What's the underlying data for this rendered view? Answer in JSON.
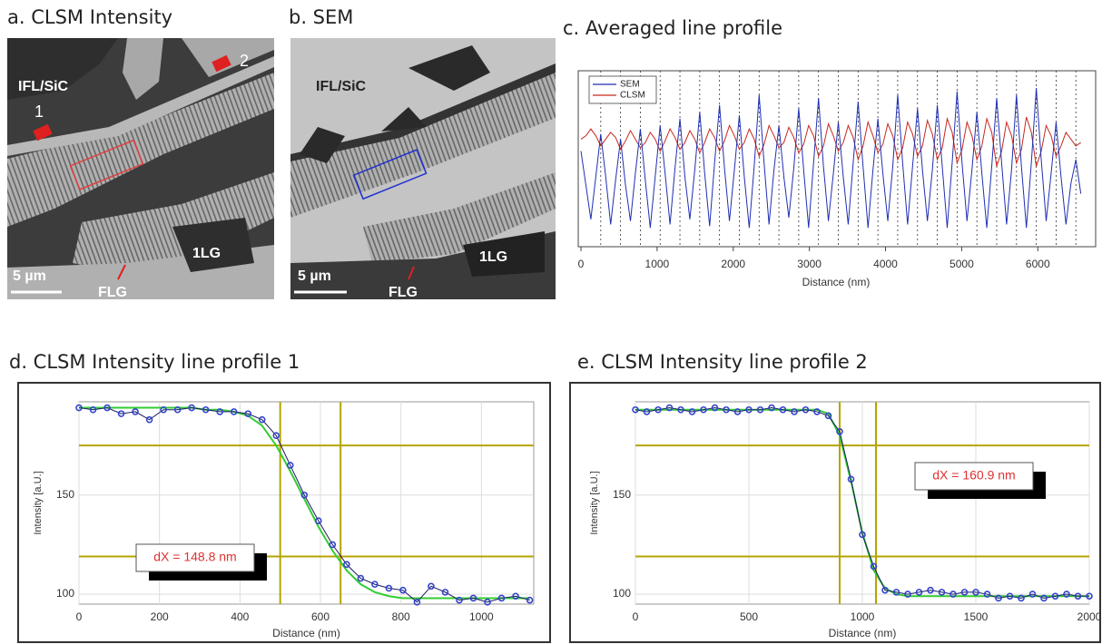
{
  "panels": [
    {
      "title": "a. CLSM Intensity",
      "labels": [
        "IFL/SiC",
        "1",
        "2",
        "FLG",
        "1LG"
      ],
      "scale_bar": "5 µm"
    },
    {
      "title": "b. SEM",
      "labels": [
        "IFL/SiC",
        "FLG",
        "1LG"
      ],
      "scale_bar": "5 µm"
    }
  ],
  "chart_data": [
    {
      "type": "line",
      "title": "c. Averaged line profile",
      "xlabel": "Distance (nm)",
      "xlim": [
        0,
        6700
      ],
      "xticks": [
        0,
        1000,
        2000,
        3000,
        4000,
        5000,
        6000
      ],
      "ylim": [
        0,
        100
      ],
      "legend": "upper left",
      "vlines": [
        260,
        520,
        780,
        1040,
        1300,
        1560,
        1820,
        2080,
        2340,
        2600,
        2860,
        3120,
        3380,
        3640,
        3900,
        4160,
        4420,
        4680,
        4940,
        5200,
        5460,
        5720,
        5980,
        6240,
        6500
      ],
      "x": [
        0,
        65,
        130,
        195,
        260,
        325,
        390,
        455,
        520,
        585,
        650,
        715,
        780,
        845,
        910,
        975,
        1040,
        1105,
        1170,
        1235,
        1300,
        1365,
        1430,
        1495,
        1560,
        1625,
        1690,
        1755,
        1820,
        1885,
        1950,
        2015,
        2080,
        2145,
        2210,
        2275,
        2340,
        2405,
        2470,
        2535,
        2600,
        2665,
        2730,
        2795,
        2860,
        2925,
        2990,
        3055,
        3120,
        3185,
        3250,
        3315,
        3380,
        3445,
        3510,
        3575,
        3640,
        3705,
        3770,
        3835,
        3900,
        3965,
        4030,
        4095,
        4160,
        4225,
        4290,
        4355,
        4420,
        4485,
        4550,
        4615,
        4680,
        4745,
        4810,
        4875,
        4940,
        5005,
        5070,
        5135,
        5200,
        5265,
        5330,
        5395,
        5460,
        5525,
        5590,
        5655,
        5720,
        5785,
        5850,
        5915,
        5980,
        6045,
        6110,
        6175,
        6240,
        6305,
        6370,
        6435,
        6500,
        6565
      ],
      "series": [
        {
          "name": "SEM",
          "color": "#1f2fb4",
          "values": [
            55,
            35,
            15,
            40,
            65,
            40,
            12,
            38,
            62,
            35,
            14,
            42,
            68,
            38,
            10,
            40,
            70,
            42,
            12,
            45,
            74,
            40,
            15,
            44,
            78,
            42,
            11,
            48,
            82,
            45,
            14,
            44,
            76,
            40,
            10,
            46,
            88,
            48,
            12,
            44,
            70,
            40,
            16,
            45,
            80,
            44,
            10,
            48,
            86,
            46,
            14,
            42,
            72,
            40,
            12,
            48,
            84,
            46,
            10,
            44,
            74,
            42,
            14,
            46,
            88,
            48,
            12,
            46,
            80,
            44,
            14,
            44,
            82,
            46,
            10,
            48,
            90,
            48,
            14,
            44,
            78,
            42,
            10,
            46,
            86,
            48,
            12,
            44,
            88,
            46,
            10,
            48,
            92,
            50,
            14,
            42,
            72,
            40,
            12,
            36,
            50,
            30
          ]
        },
        {
          "name": "CLSM",
          "color": "#c8281e",
          "values": [
            62,
            64,
            68,
            64,
            58,
            62,
            66,
            63,
            56,
            61,
            67,
            62,
            57,
            60,
            66,
            62,
            55,
            61,
            68,
            63,
            56,
            60,
            67,
            62,
            54,
            60,
            68,
            63,
            55,
            61,
            70,
            64,
            56,
            60,
            68,
            62,
            52,
            59,
            70,
            64,
            57,
            60,
            69,
            63,
            54,
            59,
            70,
            64,
            52,
            58,
            71,
            64,
            55,
            60,
            70,
            63,
            50,
            58,
            72,
            64,
            54,
            59,
            71,
            64,
            50,
            57,
            72,
            65,
            52,
            58,
            73,
            65,
            50,
            57,
            74,
            66,
            48,
            56,
            72,
            64,
            50,
            58,
            74,
            66,
            46,
            55,
            72,
            64,
            48,
            56,
            75,
            66,
            46,
            55,
            70,
            64,
            52,
            58,
            66,
            62,
            58,
            60
          ]
        }
      ]
    },
    {
      "type": "line",
      "title": "d. CLSM Intensity line profile 1",
      "xlabel": "Distance (nm)",
      "ylabel": "Intensity [a.U.]",
      "xlim": [
        0,
        1130
      ],
      "xticks": [
        0,
        200,
        400,
        600,
        800,
        1000
      ],
      "ylim": [
        95,
        197
      ],
      "yticks": [
        100,
        150
      ],
      "grid": true,
      "cursors": {
        "x": [
          500,
          650
        ],
        "y": [
          175,
          119
        ]
      },
      "annotation": "dX = 148.8 nm",
      "x": [
        0,
        35,
        70,
        105,
        140,
        175,
        210,
        245,
        280,
        315,
        350,
        385,
        420,
        455,
        490,
        525,
        560,
        595,
        630,
        665,
        700,
        735,
        770,
        805,
        840,
        875,
        910,
        945,
        980,
        1015,
        1050,
        1085,
        1120
      ],
      "series": [
        {
          "color": "#3344cc",
          "marker": "circle",
          "values": [
            194,
            193,
            194,
            191,
            192,
            188,
            193,
            193,
            194,
            193,
            192,
            192,
            191,
            188,
            180,
            165,
            150,
            137,
            125,
            115,
            108,
            105,
            103,
            102,
            96,
            104,
            101,
            97,
            98,
            96,
            98,
            99,
            97
          ]
        },
        {
          "color": "#33cc33",
          "values": [
            194,
            194,
            194,
            194,
            194,
            194,
            194,
            194,
            194,
            193,
            193,
            192,
            190,
            185,
            175,
            162,
            148,
            134,
            122,
            112,
            105,
            101,
            99,
            98,
            98,
            98,
            98,
            98,
            98,
            98,
            98,
            98,
            98
          ]
        }
      ]
    },
    {
      "type": "line",
      "title": "e. CLSM Intensity line profile 2",
      "xlabel": "Distance (nm)",
      "ylabel": "Intensity [a.U.]",
      "xlim": [
        0,
        2000
      ],
      "xticks": [
        0,
        500,
        1000,
        1500,
        2000
      ],
      "ylim": [
        95,
        197
      ],
      "yticks": [
        100,
        150
      ],
      "grid": true,
      "cursors": {
        "x": [
          900,
          1060
        ],
        "y": [
          175,
          119
        ]
      },
      "annotation": "dX = 160.9 nm",
      "x": [
        0,
        50,
        100,
        150,
        200,
        250,
        300,
        350,
        400,
        450,
        500,
        550,
        600,
        650,
        700,
        750,
        800,
        850,
        900,
        950,
        1000,
        1050,
        1100,
        1150,
        1200,
        1250,
        1300,
        1350,
        1400,
        1450,
        1500,
        1550,
        1600,
        1650,
        1700,
        1750,
        1800,
        1850,
        1900,
        1950,
        2000
      ],
      "series": [
        {
          "color": "#3344cc",
          "marker": "circle",
          "values": [
            193,
            192,
            193,
            194,
            193,
            192,
            193,
            194,
            193,
            192,
            193,
            193,
            194,
            193,
            192,
            193,
            192,
            190,
            182,
            158,
            130,
            114,
            102,
            101,
            100,
            101,
            102,
            101,
            100,
            101,
            101,
            100,
            98,
            99,
            98,
            100,
            98,
            99,
            100,
            99,
            99
          ]
        },
        {
          "color": "#33cc33",
          "values": [
            193,
            193,
            193,
            193,
            193,
            193,
            193,
            193,
            193,
            193,
            193,
            193,
            193,
            193,
            193,
            193,
            193,
            191,
            180,
            157,
            131,
            112,
            103,
            100,
            99,
            99,
            99,
            99,
            99,
            99,
            99,
            99,
            99,
            99,
            99,
            99,
            99,
            99,
            99,
            99,
            99
          ]
        }
      ]
    }
  ]
}
